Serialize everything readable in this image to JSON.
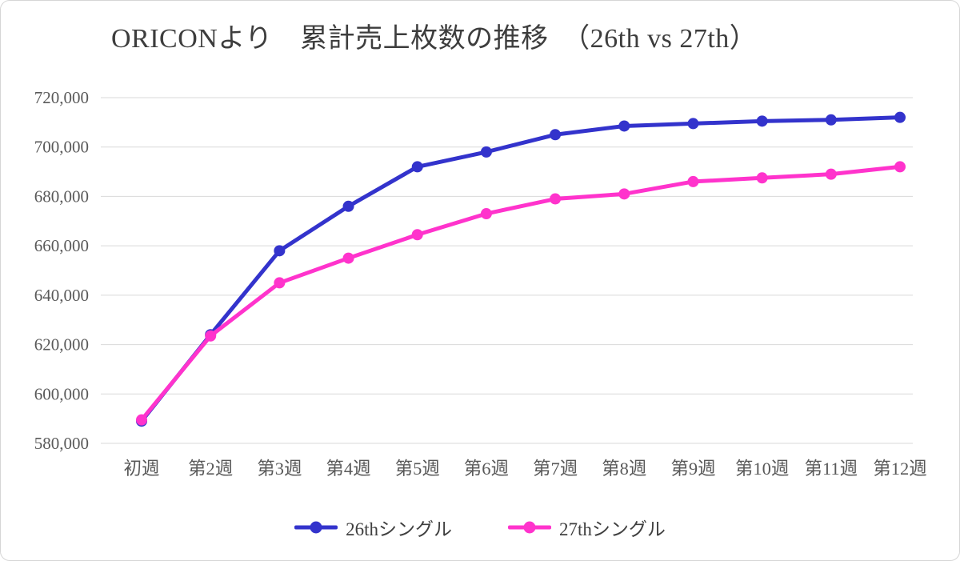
{
  "chart_data": {
    "type": "line",
    "title": "ORICONより　累計売上枚数の推移　（26th vs 27th）",
    "xlabel": "",
    "ylabel": "",
    "categories": [
      "初週",
      "第2週",
      "第3週",
      "第4週",
      "第5週",
      "第6週",
      "第7週",
      "第8週",
      "第9週",
      "第10週",
      "第11週",
      "第12週"
    ],
    "series": [
      {
        "name": "26thシングル",
        "color": "#3333cc",
        "values": [
          589000,
          624000,
          658000,
          676000,
          692000,
          698000,
          705000,
          708500,
          709500,
          710500,
          711000,
          712000
        ]
      },
      {
        "name": "27thシングル",
        "color": "#ff33cc",
        "values": [
          589500,
          623500,
          645000,
          655000,
          664500,
          673000,
          679000,
          681000,
          686000,
          687500,
          689000,
          692000
        ]
      }
    ],
    "ylim": [
      580000,
      720000
    ],
    "ytick_step": 20000,
    "ytick_labels": [
      "580,000",
      "600,000",
      "620,000",
      "640,000",
      "660,000",
      "680,000",
      "700,000",
      "720,000"
    ],
    "grid": true,
    "grid_color": "#d9d9d9",
    "text_color": "#595959",
    "legend_position": "bottom",
    "legend_entries": [
      "26thシングル",
      "27thシングル"
    ]
  }
}
